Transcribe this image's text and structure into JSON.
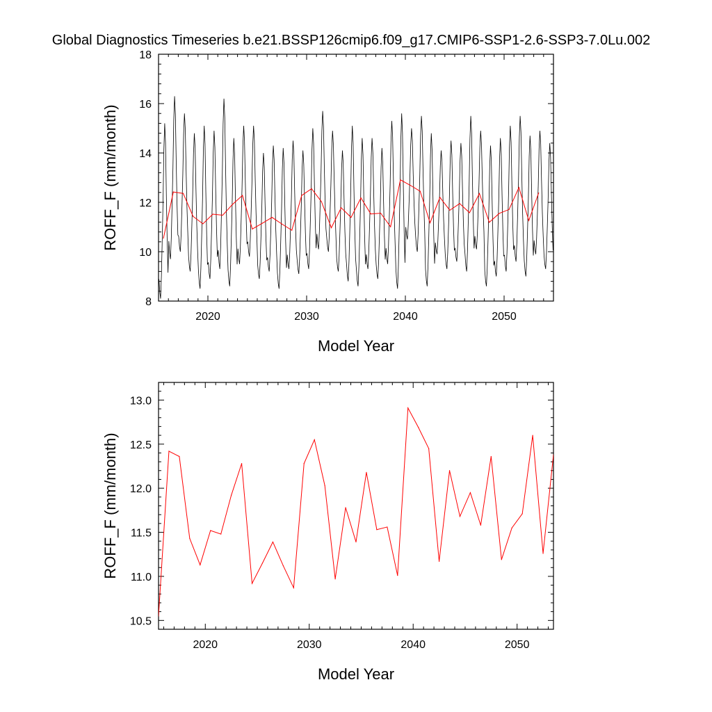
{
  "title": "Global Diagnostics Timeseries b.e21.BSSP126cmip6.f09_g17.CMIP6-SSP1-2.6-SSP3-7.0Lu.002",
  "colors": {
    "monthly": "#000000",
    "annual": "#ff0000"
  },
  "chart_data": [
    {
      "type": "line",
      "xlabel": "Model Year",
      "ylabel": "ROFF_F (mm/month)",
      "xlim": [
        2015,
        2055
      ],
      "ylim": [
        8,
        18
      ],
      "xticks": [
        2020,
        2030,
        2040,
        2050
      ],
      "yticks": [
        8,
        10,
        12,
        14,
        16,
        18
      ],
      "grid": false,
      "monthly_pattern": [
        10.4,
        10.0,
        9.8,
        10.5,
        11.6,
        12.8,
        14.4,
        15.2,
        14.6,
        13.0,
        11.6,
        10.6
      ],
      "monthly_note_values_are_estimates": "",
      "series": [
        {
          "kind": "monthly",
          "min_by_year": [
            8.1,
            9.7,
            10.0,
            9.2,
            8.5,
            8.9,
            9.3,
            8.6,
            9.5,
            9.8,
            8.9,
            9.2,
            8.5,
            9.3,
            9.1,
            9.3,
            10.1,
            10.0,
            9.2,
            8.8,
            8.6,
            9.3,
            8.9,
            9.5,
            8.5,
            10.5,
            10.0,
            8.6,
            9.9,
            9.3,
            9.6,
            9.2,
            10.1,
            8.6,
            9.0,
            9.2,
            9.6,
            9.0,
            9.9,
            9.3
          ],
          "max_by_year": [
            15.2,
            16.3,
            15.6,
            14.8,
            15.1,
            14.9,
            16.2,
            14.6,
            15.1,
            15.1,
            14.0,
            14.3,
            14.2,
            14.5,
            14.1,
            15.0,
            15.7,
            14.9,
            14.1,
            15.1,
            14.6,
            14.6,
            14.2,
            15.3,
            15.6,
            15.0,
            15.5,
            14.8,
            14.1,
            14.5,
            14.4,
            15.5,
            14.9,
            14.3,
            14.6,
            15.1,
            15.5,
            14.7,
            14.9,
            14.4
          ]
        },
        {
          "kind": "annual",
          "x": [
            2015.5,
            2016.5,
            2017.5,
            2018.5,
            2019.5,
            2020.5,
            2021.5,
            2022.5,
            2023.5,
            2024.5,
            2025.5,
            2026.5,
            2027.5,
            2028.5,
            2029.5,
            2030.5,
            2031.5,
            2032.5,
            2033.5,
            2034.5,
            2035.5,
            2036.5,
            2037.5,
            2038.5,
            2039.5,
            2040.5,
            2041.5,
            2042.5,
            2043.5,
            2044.5,
            2045.5,
            2046.5,
            2047.5,
            2048.5,
            2049.5,
            2050.5,
            2051.5,
            2052.5,
            2053.5
          ],
          "values": [
            10.55,
            12.42,
            12.36,
            11.43,
            11.13,
            11.52,
            11.48,
            11.92,
            12.28,
            10.92,
            11.15,
            11.39,
            11.12,
            10.87,
            12.28,
            12.55,
            12.03,
            10.97,
            11.78,
            11.39,
            12.18,
            11.53,
            11.56,
            11.01,
            12.91,
            12.69,
            12.45,
            11.17,
            12.2,
            11.68,
            11.95,
            11.58,
            12.36,
            11.19,
            11.55,
            11.71,
            12.6,
            11.26,
            12.38
          ]
        }
      ]
    },
    {
      "type": "line",
      "xlabel": "Model Year",
      "ylabel": "ROFF_F (mm/month)",
      "xlim": [
        2015.5,
        2053.5
      ],
      "ylim": [
        10.4,
        13.2
      ],
      "xticks": [
        2020,
        2030,
        2040,
        2050
      ],
      "yticks": [
        10.5,
        11.0,
        11.5,
        12.0,
        12.5,
        13.0
      ],
      "ytick_labels": [
        "10.5",
        "11.0",
        "11.5",
        "12.0",
        "12.5",
        "13.0"
      ],
      "grid": false,
      "series": [
        {
          "kind": "annual",
          "x": [
            2015.5,
            2016.5,
            2017.5,
            2018.5,
            2019.5,
            2020.5,
            2021.5,
            2022.5,
            2023.5,
            2024.5,
            2025.5,
            2026.5,
            2027.5,
            2028.5,
            2029.5,
            2030.5,
            2031.5,
            2032.5,
            2033.5,
            2034.5,
            2035.5,
            2036.5,
            2037.5,
            2038.5,
            2039.5,
            2040.5,
            2041.5,
            2042.5,
            2043.5,
            2044.5,
            2045.5,
            2046.5,
            2047.5,
            2048.5,
            2049.5,
            2050.5,
            2051.5,
            2052.5,
            2053.5
          ],
          "values": [
            10.55,
            12.42,
            12.36,
            11.43,
            11.13,
            11.52,
            11.48,
            11.92,
            12.28,
            10.92,
            11.15,
            11.39,
            11.12,
            10.87,
            12.28,
            12.55,
            12.03,
            10.97,
            11.78,
            11.39,
            12.18,
            11.53,
            11.56,
            11.01,
            12.91,
            12.69,
            12.45,
            11.17,
            12.2,
            11.68,
            11.95,
            11.58,
            12.36,
            11.19,
            11.55,
            11.71,
            12.6,
            11.26,
            12.38
          ]
        }
      ]
    }
  ]
}
